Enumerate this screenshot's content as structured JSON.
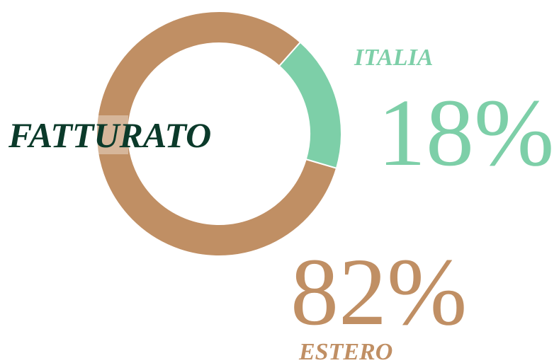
{
  "chart_data": {
    "type": "pie",
    "donut": true,
    "title": "FATTURATO",
    "categories": [
      "ITALIA",
      "ESTERO"
    ],
    "values": [
      18,
      82
    ],
    "value_labels": [
      "18%",
      "82%"
    ],
    "colors": [
      "#7dcfa8",
      "#c08f64"
    ]
  }
}
